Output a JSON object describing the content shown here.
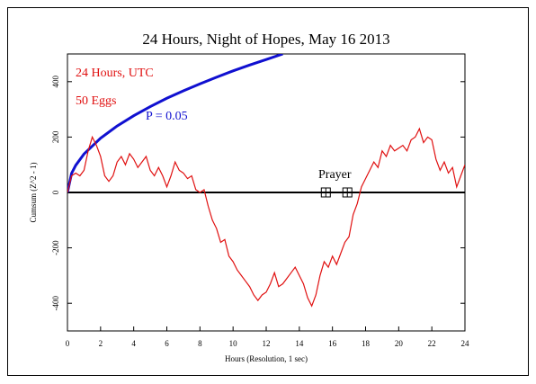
{
  "chart_data": {
    "type": "line",
    "title": "24 Hours, Night of Hopes, May 16 2013",
    "xlabel": "Hours (Resolution, 1 sec)",
    "ylabel": "Cumsum (Z^2 - 1)",
    "annotations": [
      "24 Hours, UTC",
      "50 Eggs",
      "P = 0.05",
      "Prayer"
    ],
    "markers": {
      "x": [
        15.6,
        16.9
      ],
      "y": [
        0,
        0
      ]
    },
    "xlim": [
      0,
      24
    ],
    "xticks": [
      0,
      2,
      4,
      6,
      8,
      10,
      12,
      14,
      16,
      18,
      20,
      22,
      24
    ],
    "ylim": [
      -500,
      500
    ],
    "yticks": [
      -400,
      -200,
      0,
      200,
      400
    ],
    "series": [
      {
        "name": "P = 0.05",
        "color": "#1010d0",
        "x": [
          0,
          0.25,
          0.5,
          1,
          2,
          3,
          4,
          5,
          6,
          7,
          8,
          9,
          10,
          11,
          12,
          13
        ],
        "values": [
          0,
          69,
          98,
          139,
          196,
          240,
          277,
          310,
          340,
          367,
          392,
          416,
          439,
          460,
          480,
          500
        ]
      },
      {
        "name": "Cumsum",
        "color": "#e01010",
        "x": [
          0,
          0.25,
          0.5,
          0.75,
          1,
          1.25,
          1.5,
          1.75,
          2,
          2.25,
          2.5,
          2.75,
          3,
          3.25,
          3.5,
          3.75,
          4,
          4.25,
          4.5,
          4.75,
          5,
          5.25,
          5.5,
          5.75,
          6,
          6.25,
          6.5,
          6.75,
          7,
          7.25,
          7.5,
          7.75,
          8,
          8.25,
          8.5,
          8.75,
          9,
          9.25,
          9.5,
          9.75,
          10,
          10.25,
          10.5,
          10.75,
          11,
          11.25,
          11.5,
          11.75,
          12,
          12.25,
          12.5,
          12.75,
          13,
          13.25,
          13.5,
          13.75,
          14,
          14.25,
          14.5,
          14.75,
          15,
          15.25,
          15.5,
          15.75,
          16,
          16.25,
          16.5,
          16.75,
          17,
          17.25,
          17.5,
          17.75,
          18,
          18.25,
          18.5,
          18.75,
          19,
          19.25,
          19.5,
          19.75,
          20,
          20.25,
          20.5,
          20.75,
          21,
          21.25,
          21.5,
          21.75,
          22,
          22.25,
          22.5,
          22.75,
          23,
          23.25,
          23.5,
          23.75,
          24
        ],
        "values": [
          0,
          60,
          70,
          60,
          80,
          150,
          200,
          170,
          130,
          60,
          40,
          60,
          110,
          130,
          100,
          140,
          120,
          90,
          110,
          130,
          80,
          60,
          90,
          60,
          20,
          60,
          110,
          80,
          70,
          50,
          60,
          10,
          0,
          10,
          -50,
          -100,
          -130,
          -180,
          -170,
          -230,
          -250,
          -280,
          -300,
          -320,
          -340,
          -370,
          -390,
          -370,
          -360,
          -330,
          -290,
          -340,
          -330,
          -310,
          -290,
          -270,
          -300,
          -330,
          -380,
          -410,
          -370,
          -300,
          -250,
          -270,
          -230,
          -260,
          -220,
          -180,
          -160,
          -80,
          -40,
          20,
          50,
          80,
          110,
          90,
          150,
          130,
          170,
          150,
          160,
          170,
          150,
          190,
          200,
          230,
          180,
          200,
          190,
          120,
          80,
          110,
          70,
          90,
          20,
          60,
          100
        ]
      }
    ]
  }
}
